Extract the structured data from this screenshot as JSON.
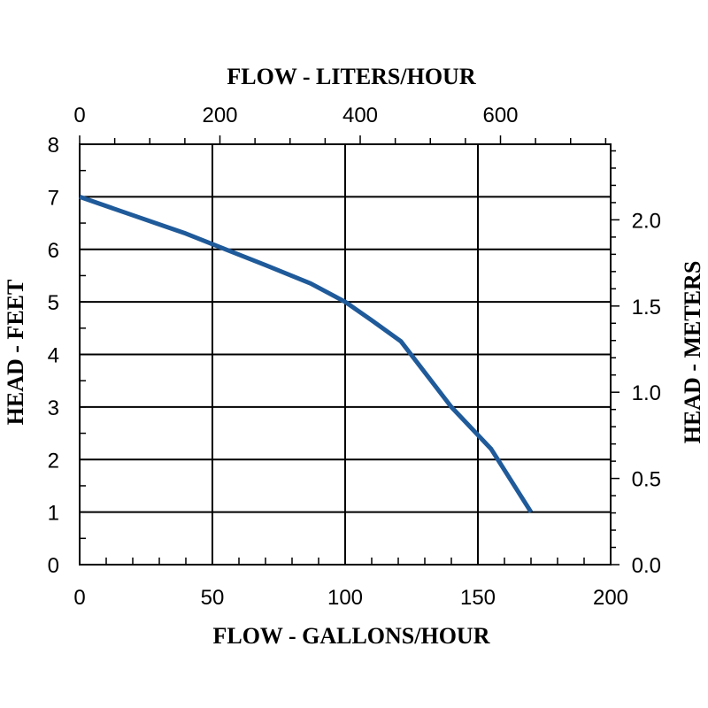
{
  "chart_data": {
    "type": "line",
    "top_axis_label": "FLOW - LITERS/HOUR",
    "bottom_axis_label": "FLOW - GALLONS/HOUR",
    "left_axis_label": "HEAD - FEET",
    "right_axis_label": "HEAD - METERS",
    "x_ticks": [
      "0",
      "50",
      "100",
      "150",
      "200"
    ],
    "y_ticks": [
      "0",
      "1",
      "2",
      "3",
      "4",
      "5",
      "6",
      "7",
      "8"
    ],
    "top_ticks": [
      "0",
      "200",
      "400",
      "600"
    ],
    "right_ticks": [
      "0.0",
      "0.5",
      "1.0",
      "1.5",
      "2.0"
    ],
    "xlim": [
      0,
      200
    ],
    "ylim": [
      0,
      8
    ],
    "grid": true,
    "line_color": "#1f5a9a",
    "series": [
      {
        "x": [
          0,
          20,
          40,
          55,
          70,
          87,
          100,
          110,
          121,
          140,
          155,
          170
        ],
        "y": [
          7.0,
          6.65,
          6.3,
          6.0,
          5.7,
          5.35,
          5.0,
          4.65,
          4.25,
          3.0,
          2.2,
          1.0
        ]
      }
    ]
  }
}
